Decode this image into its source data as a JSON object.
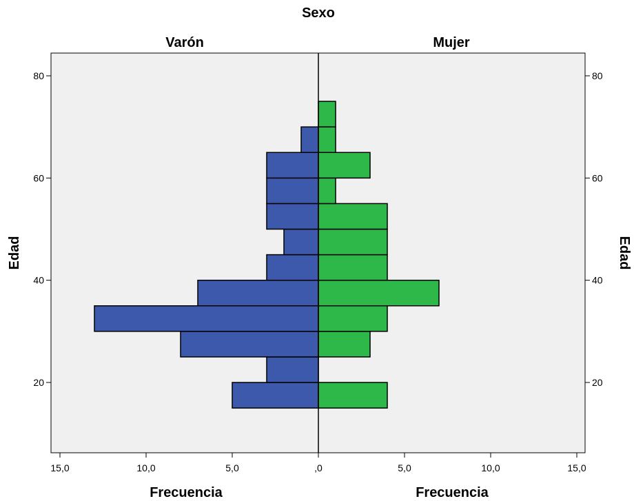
{
  "chart_data": {
    "type": "bar",
    "title": "Sexo",
    "panels": [
      {
        "name": "Varón",
        "color": "#3d59ab"
      },
      {
        "name": "Mujer",
        "color": "#2eb84a"
      }
    ],
    "xlabel": "Frecuencia",
    "ylabel": "Edad",
    "xlim": [
      0,
      15
    ],
    "ylim": [
      10,
      83
    ],
    "y_ticks": [
      20,
      40,
      60,
      80
    ],
    "x_ticks": [
      {
        "value": 15,
        "label": "15,0"
      },
      {
        "value": 10,
        "label": "10,0"
      },
      {
        "value": 5,
        "label": "5,0"
      },
      {
        "value": 0,
        "label": ",0"
      },
      {
        "value": 5,
        "label": "5,0"
      },
      {
        "value": 10,
        "label": "10,0"
      },
      {
        "value": 15,
        "label": "15,0"
      }
    ],
    "bin_starts": [
      15,
      20,
      25,
      30,
      35,
      40,
      45,
      50,
      55,
      60,
      65,
      70
    ],
    "bin_width": 5,
    "series": [
      {
        "name": "Varón",
        "values": [
          5,
          3,
          8,
          13,
          7,
          3,
          2,
          3,
          3,
          3,
          1,
          0
        ]
      },
      {
        "name": "Mujer",
        "values": [
          4,
          0,
          3,
          4,
          7,
          4,
          4,
          4,
          1,
          3,
          1,
          1
        ]
      }
    ],
    "grid": false,
    "background": "#f0f0f0"
  }
}
